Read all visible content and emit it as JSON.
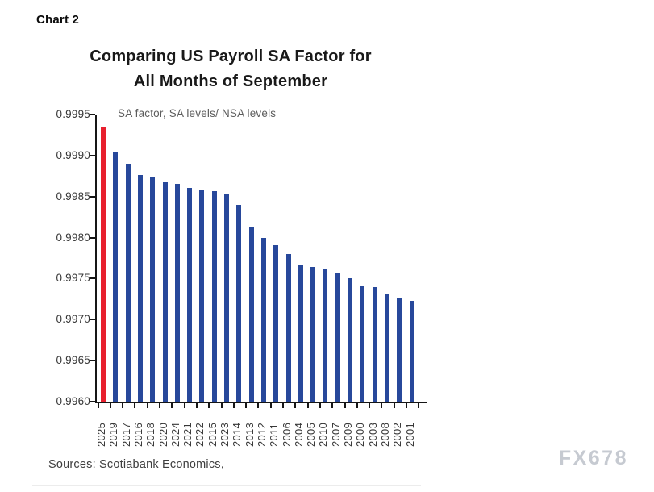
{
  "page": {
    "chart_label": "Chart 2",
    "footer": "Sources: Scotiabank Economics,",
    "watermark": "FX678"
  },
  "chart_data": {
    "type": "bar",
    "title": "Comparing US Payroll SA Factor for All Months of September",
    "title_lines": [
      "Comparing US Payroll SA Factor for",
      "All Months of September"
    ],
    "subtitle": "SA factor, SA levels/ NSA levels",
    "xlabel": "",
    "ylabel": "",
    "categories": [
      "2025",
      "2019",
      "2017",
      "2016",
      "2018",
      "2020",
      "2024",
      "2021",
      "2022",
      "2015",
      "2023",
      "2014",
      "2013",
      "2012",
      "2011",
      "2006",
      "2004",
      "2005",
      "2010",
      "2007",
      "2009",
      "2000",
      "2003",
      "2008",
      "2002",
      "2001"
    ],
    "values": [
      0.99934,
      0.99905,
      0.9989,
      0.99876,
      0.99874,
      0.99867,
      0.99865,
      0.99861,
      0.99858,
      0.99857,
      0.99853,
      0.9984,
      0.99812,
      0.998,
      0.99791,
      0.9978,
      0.99767,
      0.99764,
      0.99762,
      0.99756,
      0.9975,
      0.99742,
      0.9974,
      0.99731,
      0.99727,
      0.99723
    ],
    "ylim": [
      0.996,
      0.9995
    ],
    "yticks": [
      0.9995,
      0.999,
      0.9985,
      0.998,
      0.9975,
      0.997,
      0.9965,
      0.996
    ],
    "ytick_labels": [
      "0.9995",
      "0.9990",
      "0.9985",
      "0.9980",
      "0.9975",
      "0.9970",
      "0.9965",
      "0.9960"
    ],
    "grid": false,
    "legend_position": "none",
    "colors": {
      "highlight_category": "2025",
      "highlight": "#e8202e",
      "default": "#27489b",
      "axis": "#161616"
    }
  }
}
